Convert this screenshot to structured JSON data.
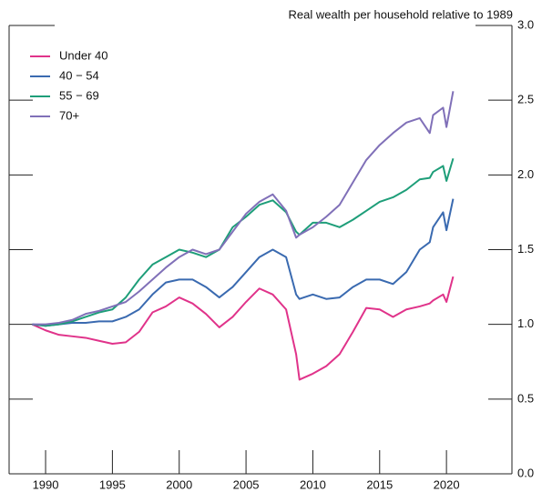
{
  "chart_data": {
    "type": "line",
    "title": "Real wealth per household relative to 1989",
    "x": [
      1989,
      1990,
      1991,
      1992,
      1993,
      1994,
      1995,
      1996,
      1997,
      1998,
      1999,
      2000,
      2001,
      2002,
      2003,
      2004,
      2005,
      2006,
      2007,
      2008,
      2008.75,
      2009,
      2010,
      2011,
      2012,
      2013,
      2014,
      2015,
      2016,
      2017,
      2018,
      2018.75,
      2019,
      2019.75,
      2020,
      2020.5
    ],
    "series": [
      {
        "name": "Under 40",
        "color": "#e0338a",
        "values": [
          1.0,
          0.96,
          0.93,
          0.92,
          0.91,
          0.89,
          0.87,
          0.88,
          0.95,
          1.08,
          1.12,
          1.18,
          1.14,
          1.07,
          0.98,
          1.05,
          1.15,
          1.24,
          1.2,
          1.1,
          0.8,
          0.63,
          0.67,
          0.72,
          0.8,
          0.95,
          1.11,
          1.1,
          1.05,
          1.1,
          1.12,
          1.14,
          1.16,
          1.2,
          1.15,
          1.32
        ]
      },
      {
        "name": "40 − 54",
        "color": "#3a6ab0",
        "values": [
          1.0,
          0.99,
          1.0,
          1.01,
          1.01,
          1.02,
          1.02,
          1.05,
          1.1,
          1.2,
          1.28,
          1.3,
          1.3,
          1.25,
          1.18,
          1.25,
          1.35,
          1.45,
          1.5,
          1.45,
          1.2,
          1.17,
          1.2,
          1.17,
          1.18,
          1.25,
          1.3,
          1.3,
          1.27,
          1.35,
          1.5,
          1.55,
          1.65,
          1.75,
          1.63,
          1.84
        ]
      },
      {
        "name": "55 − 69",
        "color": "#1e9e79",
        "values": [
          1.0,
          0.99,
          1.0,
          1.02,
          1.05,
          1.08,
          1.1,
          1.18,
          1.3,
          1.4,
          1.45,
          1.5,
          1.48,
          1.45,
          1.5,
          1.65,
          1.72,
          1.8,
          1.83,
          1.75,
          1.62,
          1.6,
          1.68,
          1.68,
          1.65,
          1.7,
          1.76,
          1.82,
          1.85,
          1.9,
          1.97,
          1.98,
          2.02,
          2.06,
          1.96,
          2.11
        ]
      },
      {
        "name": "70+",
        "color": "#8070b8",
        "values": [
          1.0,
          1.0,
          1.01,
          1.03,
          1.07,
          1.09,
          1.12,
          1.15,
          1.22,
          1.3,
          1.38,
          1.45,
          1.5,
          1.47,
          1.5,
          1.62,
          1.74,
          1.82,
          1.87,
          1.76,
          1.58,
          1.6,
          1.65,
          1.72,
          1.8,
          1.95,
          2.1,
          2.2,
          2.28,
          2.35,
          2.38,
          2.28,
          2.4,
          2.45,
          2.32,
          2.56
        ]
      }
    ],
    "xlim": [
      1987.27,
      2024.9
    ],
    "xticks": [
      1990,
      1995,
      2000,
      2005,
      2010,
      2015,
      2020
    ],
    "ylim": [
      0,
      3
    ],
    "yticks": [
      {
        "value": 0,
        "label": "0.0"
      },
      0.5,
      {
        "value": 1,
        "label": "1.0"
      },
      1.5,
      {
        "value": 2,
        "label": "2.0"
      },
      2.5,
      {
        "value": 3,
        "label": "3.0"
      }
    ],
    "legend": "upper left"
  }
}
